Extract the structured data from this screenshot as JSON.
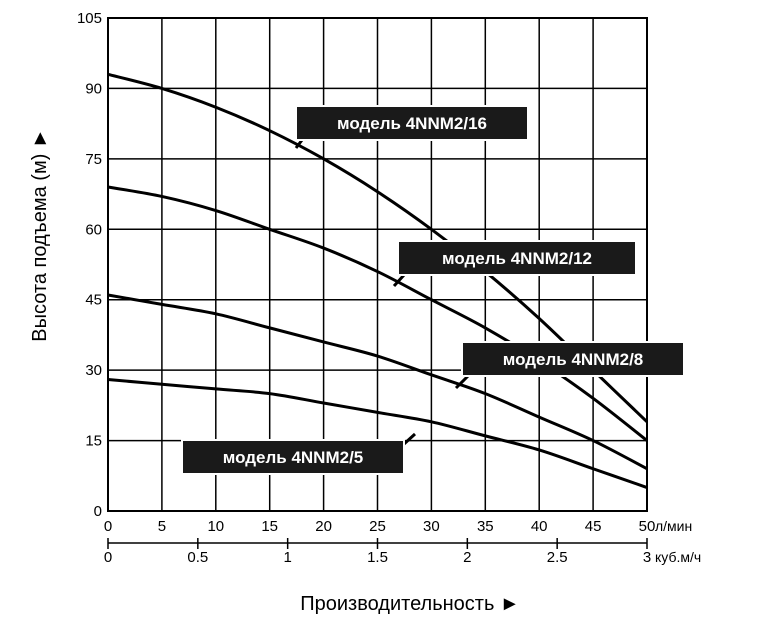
{
  "chart_data": {
    "type": "line",
    "ylabel": "Высота подъема (м) ►",
    "xlabel": "Производительность ►",
    "ylim": [
      0,
      105
    ],
    "yticks": [
      "0",
      "15",
      "30",
      "45",
      "60",
      "75",
      "90",
      "105"
    ],
    "xlim": [
      0,
      50
    ],
    "xticks_lmin": [
      "0",
      "5",
      "10",
      "15",
      "20",
      "25",
      "30",
      "35",
      "40",
      "45",
      "50"
    ],
    "x_unit_lmin": "л/мин",
    "xticks_m3h": [
      "0",
      "0.5",
      "1",
      "1.5",
      "2",
      "2.5",
      "3"
    ],
    "x_unit_m3h": "куб.м/ч",
    "grid": true,
    "series": [
      {
        "name": "модель 4NNM2/16",
        "x": [
          0,
          5,
          10,
          15,
          20,
          25,
          30,
          35,
          40,
          45,
          50
        ],
        "y": [
          93,
          90,
          86,
          81,
          75,
          68,
          60,
          51,
          41,
          30,
          19
        ]
      },
      {
        "name": "модель 4NNM2/12",
        "x": [
          0,
          5,
          10,
          15,
          20,
          25,
          30,
          35,
          40,
          45,
          50
        ],
        "y": [
          69,
          67,
          64,
          60,
          56,
          51,
          45,
          39,
          32,
          24,
          15
        ]
      },
      {
        "name": "модель 4NNM2/8",
        "x": [
          0,
          5,
          10,
          15,
          20,
          25,
          30,
          35,
          40,
          45,
          50
        ],
        "y": [
          46,
          44,
          42,
          39,
          36,
          33,
          29,
          25,
          20,
          15,
          9
        ]
      },
      {
        "name": "модель 4NNM2/5",
        "x": [
          0,
          5,
          10,
          15,
          20,
          25,
          30,
          35,
          40,
          45,
          50
        ],
        "y": [
          28,
          27,
          26,
          25,
          23,
          21,
          19,
          16,
          13,
          9,
          5
        ]
      }
    ]
  }
}
